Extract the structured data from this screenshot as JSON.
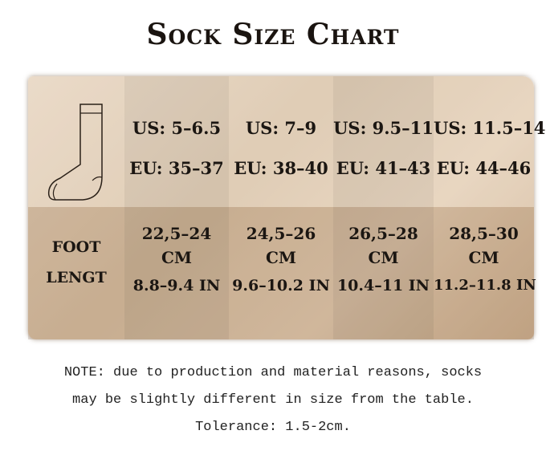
{
  "title": "Sock Size Chart",
  "row_label": {
    "line1": "FOOT",
    "line2": "LENGT"
  },
  "sizes": [
    {
      "us": "US: 5–6.5",
      "eu": "EU: 35–37",
      "cm": "22,5–24",
      "cm_unit": "CM",
      "inch": "8.8–9.4 IN"
    },
    {
      "us": "US: 7–9",
      "eu": "EU: 38–40",
      "cm": "24,5–26",
      "cm_unit": "CM",
      "inch": "9.6–10.2 IN"
    },
    {
      "us": "US: 9.5–11",
      "eu": "EU: 41–43",
      "cm": "26,5–28",
      "cm_unit": "CM",
      "inch": "10.4–11 IN"
    },
    {
      "us": "US: 11.5–14",
      "eu": "EU: 44–46",
      "cm": "28,5–30",
      "cm_unit": "CM",
      "inch": "11.2–11.8 IN"
    }
  ],
  "note": {
    "line1": "NOTE: due to production and material reasons, socks",
    "line2": "may be slightly different in size from the table.",
    "line3": "Tolerance: 1.5-2cm."
  }
}
